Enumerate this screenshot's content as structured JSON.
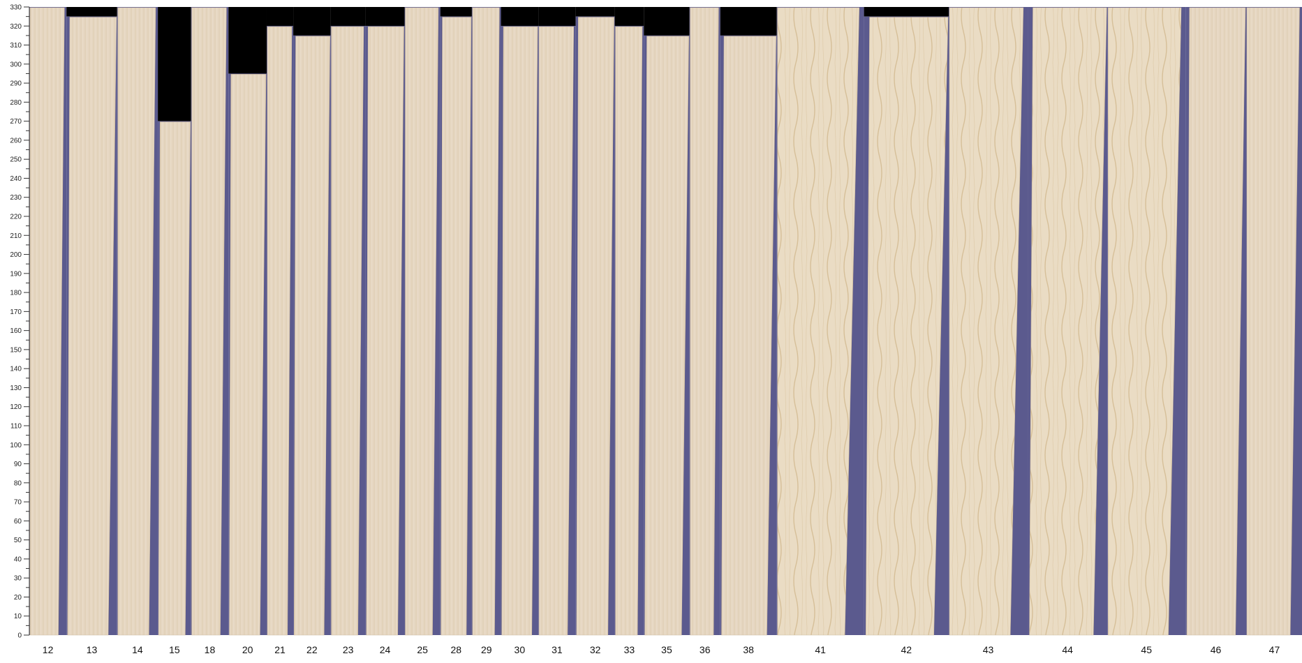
{
  "chart_data": {
    "type": "bar",
    "title": "",
    "xlabel": "",
    "ylabel": "",
    "ylim": [
      0,
      330
    ],
    "y_tick_step": 10,
    "y_minor_step": 5,
    "grid": false,
    "categories": [
      "12",
      "13",
      "14",
      "15",
      "18",
      "20",
      "21",
      "22",
      "23",
      "24",
      "25",
      "28",
      "29",
      "30",
      "31",
      "32",
      "33",
      "35",
      "36",
      "38",
      "41",
      "42",
      "43",
      "44",
      "45",
      "46",
      "47"
    ],
    "values": [
      330,
      325,
      330,
      270,
      330,
      295,
      320,
      315,
      320,
      320,
      330,
      325,
      330,
      320,
      320,
      325,
      320,
      315,
      330,
      315,
      330,
      325,
      330,
      330,
      330,
      330,
      330
    ],
    "colors": {
      "board": "#e6d7c2",
      "grain": "#d4c2a6",
      "gap": "#5b5a8e",
      "empty": "#000000",
      "axis": "#333333"
    }
  }
}
